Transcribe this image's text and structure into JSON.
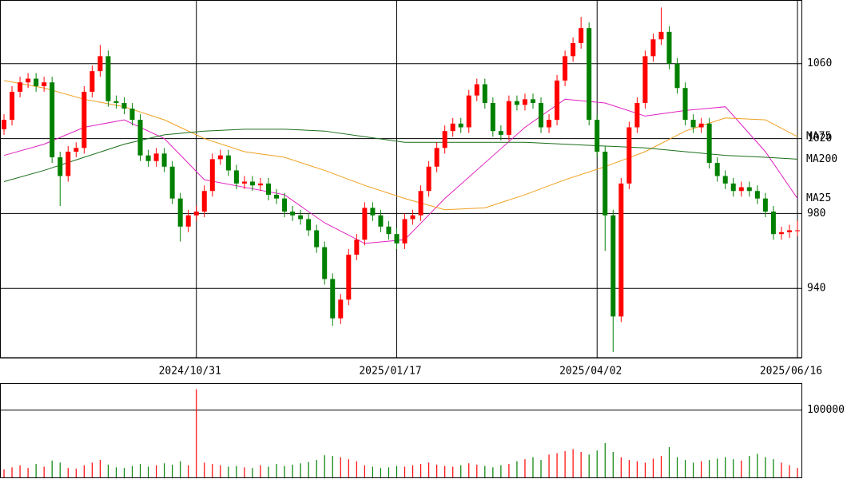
{
  "chart_data": [
    {
      "type": "candlestick",
      "categories": [
        null,
        null,
        null,
        null,
        null,
        null,
        null,
        null,
        null,
        null,
        null,
        null,
        null,
        null,
        null,
        null,
        null,
        null,
        null,
        null,
        null,
        null,
        null,
        null,
        "2024/10/31",
        null,
        null,
        null,
        null,
        null,
        null,
        null,
        null,
        null,
        null,
        null,
        null,
        null,
        null,
        null,
        null,
        null,
        null,
        null,
        null,
        null,
        null,
        null,
        null,
        "2025/01/17",
        null,
        null,
        null,
        null,
        null,
        null,
        null,
        null,
        null,
        null,
        null,
        null,
        null,
        null,
        null,
        null,
        null,
        null,
        null,
        null,
        null,
        null,
        null,
        null,
        "2025/04/02",
        null,
        null,
        null,
        null,
        null,
        null,
        null,
        null,
        null,
        null,
        null,
        null,
        null,
        null,
        null,
        null,
        null,
        null,
        null,
        null,
        null,
        null,
        null,
        null,
        "2025/06/16"
      ],
      "open": [
        1025,
        1030,
        1045,
        1050,
        1052,
        1048,
        1050,
        1010,
        1000,
        1013,
        1015,
        1045,
        1056,
        1064,
        1040,
        1039,
        1036,
        1030,
        1011,
        1008,
        1012,
        1005,
        988,
        973,
        979,
        981,
        992,
        1009,
        1011,
        1003,
        996,
        997,
        995,
        996,
        990,
        988,
        981,
        979,
        977,
        971,
        962,
        945,
        924,
        934,
        958,
        966,
        983,
        979,
        973,
        969,
        964,
        977,
        979,
        992,
        1005,
        1015,
        1024,
        1028,
        1026,
        1043,
        1049,
        1039,
        1024,
        1022,
        1040,
        1038,
        1041,
        1039,
        1026,
        1030,
        1051,
        1064,
        1071,
        1079,
        1030,
        1013,
        979,
        925,
        996,
        1026,
        1039,
        1064,
        1073,
        1077,
        1060,
        1047,
        1030,
        1026,
        1028,
        1007,
        1000,
        996,
        992,
        994,
        992,
        988,
        981,
        969,
        970,
        971
      ],
      "high": [
        1033,
        1048,
        1053,
        1055,
        1055,
        1053,
        1053,
        1013,
        1016,
        1018,
        1048,
        1059,
        1070,
        1067,
        1043,
        1042,
        1039,
        1033,
        1014,
        1015,
        1015,
        1008,
        991,
        982,
        984,
        995,
        1012,
        1014,
        1014,
        1006,
        1000,
        1000,
        999,
        999,
        993,
        991,
        984,
        982,
        980,
        974,
        965,
        948,
        937,
        961,
        969,
        986,
        986,
        982,
        976,
        972,
        980,
        982,
        995,
        1008,
        1018,
        1027,
        1031,
        1031,
        1046,
        1052,
        1052,
        1042,
        1027,
        1043,
        1043,
        1044,
        1044,
        1042,
        1033,
        1054,
        1067,
        1074,
        1085,
        1082,
        1033,
        1016,
        982,
        999,
        1029,
        1042,
        1067,
        1076,
        1090,
        1080,
        1063,
        1050,
        1033,
        1031,
        1031,
        1010,
        1003,
        999,
        997,
        997,
        995,
        991,
        984,
        973,
        974,
        976
      ],
      "low": [
        1022,
        1027,
        1042,
        1047,
        1045,
        1045,
        1007,
        984,
        997,
        1010,
        1012,
        1042,
        1053,
        1037,
        1036,
        1033,
        1027,
        1008,
        1005,
        1005,
        1002,
        985,
        965,
        970,
        976,
        978,
        989,
        1006,
        1000,
        993,
        993,
        992,
        992,
        987,
        985,
        978,
        976,
        974,
        968,
        959,
        942,
        920,
        921,
        931,
        955,
        963,
        976,
        970,
        966,
        961,
        961,
        974,
        976,
        989,
        1002,
        1012,
        1021,
        1023,
        1023,
        1040,
        1036,
        1021,
        1019,
        1019,
        1035,
        1035,
        1036,
        1023,
        1023,
        1027,
        1048,
        1061,
        1068,
        1027,
        1010,
        960,
        906,
        922,
        993,
        1023,
        1036,
        1061,
        1070,
        1057,
        1044,
        1027,
        1023,
        1023,
        1004,
        997,
        993,
        989,
        989,
        989,
        985,
        978,
        966,
        966,
        967,
        968
      ],
      "close": [
        1030,
        1045,
        1050,
        1052,
        1048,
        1050,
        1010,
        1000,
        1013,
        1015,
        1045,
        1056,
        1064,
        1040,
        1039,
        1036,
        1030,
        1011,
        1008,
        1012,
        1005,
        988,
        973,
        979,
        981,
        992,
        1009,
        1011,
        1003,
        996,
        997,
        995,
        996,
        990,
        988,
        981,
        979,
        977,
        971,
        962,
        945,
        924,
        934,
        958,
        966,
        983,
        979,
        973,
        969,
        964,
        977,
        979,
        992,
        1005,
        1015,
        1024,
        1028,
        1026,
        1043,
        1049,
        1039,
        1024,
        1022,
        1040,
        1038,
        1041,
        1039,
        1026,
        1030,
        1051,
        1064,
        1071,
        1079,
        1030,
        1013,
        979,
        925,
        996,
        1026,
        1039,
        1064,
        1073,
        1077,
        1060,
        1047,
        1030,
        1026,
        1028,
        1007,
        1000,
        996,
        992,
        994,
        992,
        988,
        981,
        969,
        970,
        971,
        971
      ],
      "up_color": "#ff0000",
      "down_color": "#008000",
      "series": [
        {
          "name": "MA25",
          "color": "#e020c0",
          "x": [
            0,
            5,
            10,
            15,
            20,
            25,
            30,
            35,
            40,
            45,
            50,
            55,
            60,
            65,
            70,
            75,
            80,
            85,
            90,
            95,
            99
          ],
          "values": [
            1011,
            1017,
            1026,
            1030,
            1020,
            998,
            994,
            990,
            975,
            964,
            966,
            988,
            1007,
            1026,
            1041,
            1039,
            1032,
            1035,
            1037,
            1013,
            988
          ]
        },
        {
          "name": "MA75",
          "color": "#f0a020",
          "x": [
            0,
            5,
            10,
            15,
            20,
            25,
            30,
            35,
            40,
            45,
            50,
            55,
            60,
            65,
            70,
            75,
            80,
            85,
            90,
            95,
            99
          ],
          "values": [
            1051,
            1047,
            1041,
            1037,
            1030,
            1020,
            1013,
            1010,
            1003,
            995,
            988,
            982,
            983,
            990,
            998,
            1005,
            1013,
            1024,
            1031,
            1030,
            1021
          ]
        },
        {
          "name": "MA200",
          "color": "#1a6e1a",
          "x": [
            0,
            5,
            10,
            15,
            20,
            25,
            30,
            35,
            40,
            45,
            50,
            55,
            60,
            65,
            70,
            75,
            80,
            85,
            90,
            95,
            99
          ],
          "values": [
            997,
            1003,
            1010,
            1017,
            1022,
            1024,
            1025,
            1025,
            1024,
            1021,
            1018,
            1018,
            1018,
            1018,
            1017,
            1016,
            1015,
            1013,
            1011,
            1010,
            1009
          ]
        }
      ],
      "ylim": [
        903,
        1094
      ],
      "yticks": [
        940,
        980,
        1020,
        1060
      ],
      "grid": true
    },
    {
      "type": "bar",
      "values": [
        12000,
        15000,
        18000,
        14000,
        20000,
        16000,
        25000,
        22000,
        14000,
        13000,
        18000,
        22000,
        26000,
        19000,
        15000,
        14000,
        17000,
        20000,
        16000,
        18000,
        21000,
        19000,
        24000,
        18000,
        131000,
        22000,
        20000,
        18000,
        16000,
        17000,
        15000,
        14000,
        18000,
        16000,
        20000,
        17000,
        19000,
        21000,
        23000,
        26000,
        33000,
        32000,
        30000,
        27000,
        24000,
        18000,
        16000,
        14000,
        15000,
        17000,
        16000,
        18000,
        20000,
        22000,
        19000,
        17000,
        16000,
        18000,
        21000,
        19000,
        17000,
        15000,
        18000,
        20000,
        24000,
        27000,
        30000,
        26000,
        34000,
        36000,
        39000,
        42000,
        38000,
        34000,
        40000,
        51000,
        38000,
        30000,
        26000,
        24000,
        22000,
        28000,
        32000,
        45000,
        30000,
        26000,
        22000,
        24000,
        26000,
        28000,
        30000,
        27000,
        25000,
        32000,
        35000,
        30000,
        27000,
        22000,
        18000,
        14000
      ],
      "ylim": [
        0,
        140000
      ],
      "yticks": [
        100000
      ]
    }
  ]
}
